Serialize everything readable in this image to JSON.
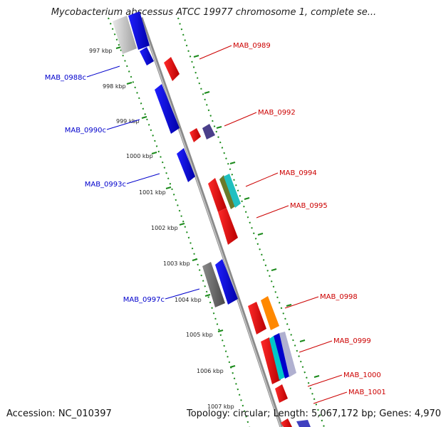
{
  "title": "Mycobacterium abscessus ATCC 19977 chromosome 1, complete se...",
  "accession": "Accession: NC_010397",
  "summary": "Topology: circular; Length: 5,067,172 bp; Genes: 4,970",
  "kbp_labels": [
    "997 kbp",
    "998 kbp",
    "999 kbp",
    "1000 kbp",
    "1001 kbp",
    "1002 kbp",
    "1003 kbp",
    "1004 kbp",
    "1005 kbp",
    "1006 kbp",
    "1007 kbp"
  ],
  "genes_minus": [
    "MAB_0988c",
    "MAB_0990c",
    "MAB_0993c",
    "MAB_0997c"
  ],
  "genes_plus": [
    "MAB_0989",
    "MAB_0992",
    "MAB_0994",
    "MAB_0995",
    "MAB_0998",
    "MAB_0999",
    "MAB_1000",
    "MAB_1001"
  ],
  "colors": {
    "minus_label": "#0000cc",
    "plus_label": "#cc0000",
    "backbone": "#8a8a8a",
    "ticks": "#1a8a1a"
  }
}
